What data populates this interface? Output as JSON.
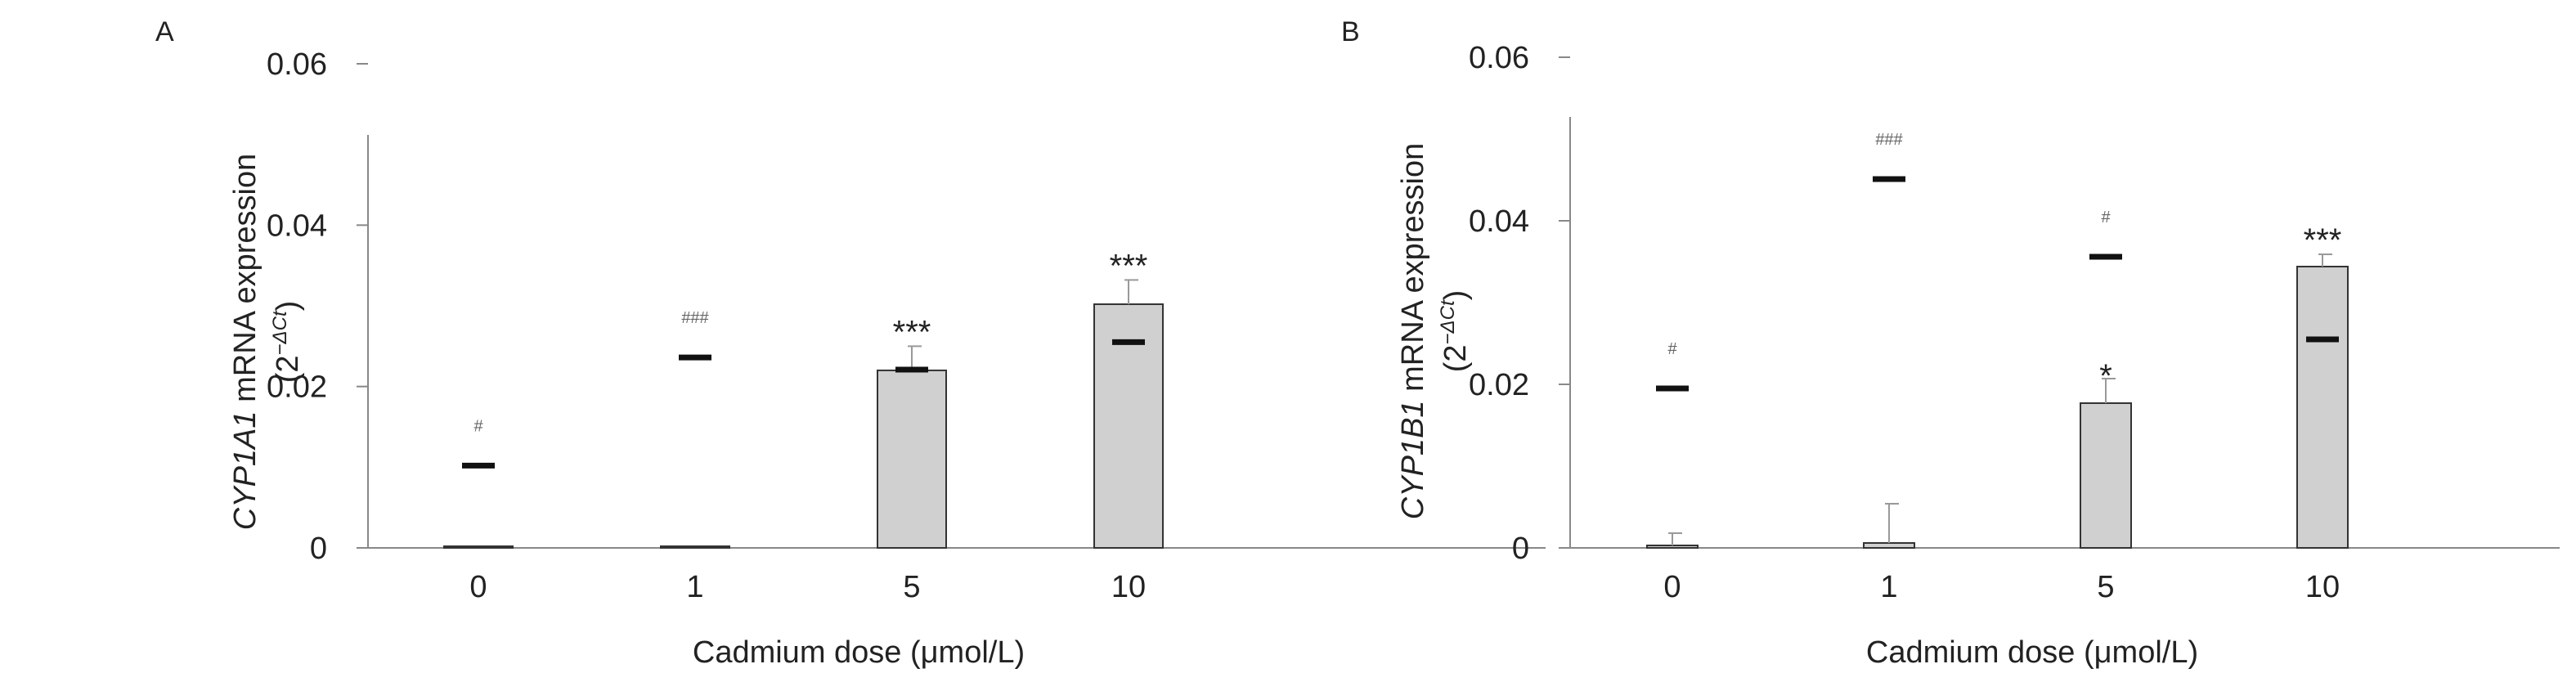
{
  "chart_data": [
    {
      "type": "bar",
      "panel_label": "A",
      "categories": [
        "0",
        "1",
        "5",
        "10"
      ],
      "values": [
        0.0002,
        0.0002,
        0.022,
        0.0302
      ],
      "error_bars": [
        0,
        0,
        0.003,
        0.003
      ],
      "reference_marks": [
        0.0102,
        0.0236,
        0.0221,
        0.0255
      ],
      "annotations": [
        "#",
        "###",
        "***",
        "***"
      ],
      "y_ticks": [
        "0",
        "0.02",
        "0.04",
        "0.06"
      ],
      "ylim": [
        0,
        0.06
      ],
      "xlabel": "Cadmium dose (μmol/L)",
      "ylabel": {
        "gene": "CYP1A1",
        "suffix": " mRNA expression",
        "unit_base": "(2",
        "unit_exp": "−ΔCt",
        "unit_close": ")"
      },
      "bar_color": "#d0d0d0",
      "grid": false
    },
    {
      "type": "bar",
      "panel_label": "B",
      "categories": [
        "0",
        "1",
        "5",
        "10"
      ],
      "values": [
        0.0003,
        0.0006,
        0.0177,
        0.0344
      ],
      "error_bars": [
        0.0015,
        0.0048,
        0.003,
        0.0015
      ],
      "reference_marks": [
        0.0195,
        0.0451,
        0.0356,
        0.0255
      ],
      "annotations": [
        "#",
        "###",
        "#",
        "***"
      ],
      "bar_annotations": [
        "",
        "",
        "*",
        ""
      ],
      "y_ticks": [
        "0",
        "0.02",
        "0.04",
        "0.06"
      ],
      "ylim": [
        0,
        0.06
      ],
      "xlabel": "Cadmium dose (μmol/L)",
      "ylabel": {
        "gene": "CYP1B1",
        "suffix": " mRNA expression",
        "unit_base": "(2",
        "unit_exp": "−ΔCt",
        "unit_close": ")"
      },
      "bar_color": "#d0d0d0",
      "grid": false
    }
  ]
}
